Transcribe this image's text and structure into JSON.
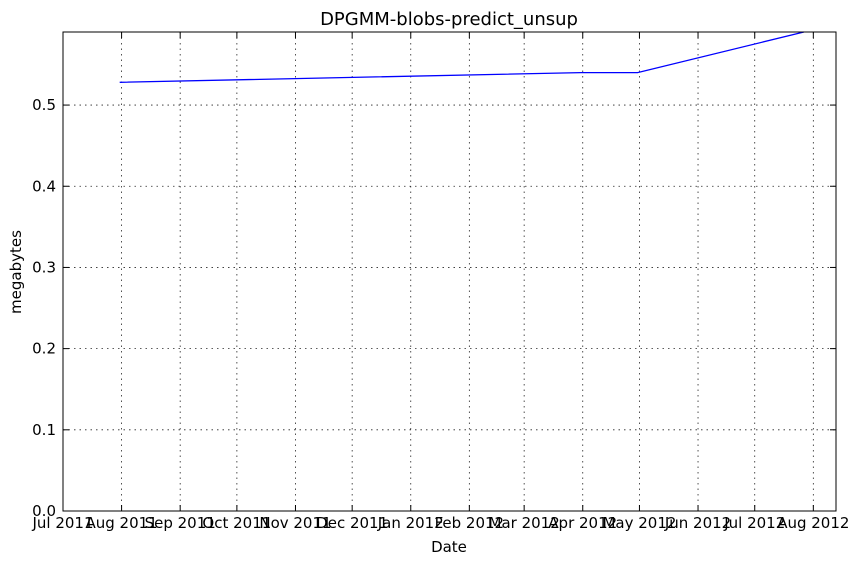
{
  "chart_data": {
    "type": "line",
    "title": "DPGMM-blobs-predict_unsup",
    "xlabel": "Date",
    "ylabel": "megabytes",
    "x_tick_labels": [
      "Jul 2011",
      "Aug 2011",
      "Sep 2011",
      "Oct 2011",
      "Nov 2011",
      "Dec 2011",
      "Jan 2012",
      "Feb 2012",
      "Mar 2012",
      "Apr 2012",
      "May 2012",
      "Jun 2012",
      "Jul 2012",
      "Aug 2012"
    ],
    "x_tick_dates": [
      "2011-07-01",
      "2011-08-01",
      "2011-09-01",
      "2011-10-01",
      "2011-11-01",
      "2011-12-01",
      "2012-01-01",
      "2012-02-01",
      "2012-03-01",
      "2012-04-01",
      "2012-05-01",
      "2012-06-01",
      "2012-07-01",
      "2012-08-01"
    ],
    "y_tick_labels": [
      "0.0",
      "0.1",
      "0.2",
      "0.3",
      "0.4",
      "0.5"
    ],
    "y_tick_values": [
      0.0,
      0.1,
      0.2,
      0.3,
      0.4,
      0.5
    ],
    "xlim": [
      "2011-07-01",
      "2012-08-13"
    ],
    "ylim": [
      0.0,
      0.59
    ],
    "grid": true,
    "series": [
      {
        "color": "#0000ff",
        "x": [
          "2011-07-31",
          "2012-03-31",
          "2012-04-30",
          "2012-07-27"
        ],
        "y": [
          0.528,
          0.54,
          0.54,
          0.59
        ]
      }
    ]
  }
}
